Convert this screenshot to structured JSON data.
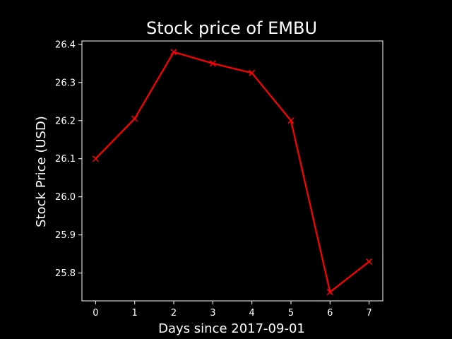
{
  "chart_data": {
    "type": "line",
    "title": "Stock price of EMBU",
    "xlabel": "Days since 2017-09-01",
    "ylabel": "Stock Price (USD)",
    "x": [
      0,
      1,
      2,
      3,
      4,
      5,
      6,
      7
    ],
    "series": [
      {
        "values": [
          26.1,
          26.205,
          26.38,
          26.35,
          26.325,
          26.2,
          25.75,
          25.83
        ],
        "color": "#ff0000",
        "marker": "x"
      }
    ],
    "xticks": [
      "0",
      "1",
      "2",
      "3",
      "4",
      "5",
      "6",
      "7"
    ],
    "yticks": [
      "25.8",
      "25.9",
      "26.0",
      "26.1",
      "26.2",
      "26.3",
      "26.4"
    ],
    "xlim": [
      -0.35,
      7.35
    ],
    "ylim": [
      25.727,
      26.409
    ],
    "grid": false,
    "background": "#000000",
    "foreground": "#ffffff"
  }
}
